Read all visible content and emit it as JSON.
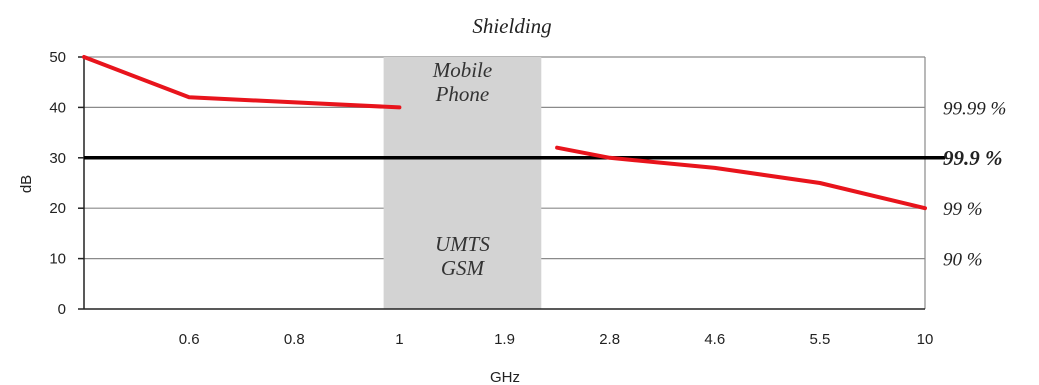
{
  "chart_data": {
    "type": "line",
    "title": "Shielding",
    "xlabel": "GHz",
    "ylabel": "dB",
    "ylim": [
      0,
      50
    ],
    "yticks": [
      "0",
      "10",
      "20",
      "30",
      "40",
      "50"
    ],
    "categories": [
      "",
      "0.6",
      "0.8",
      "1",
      "1.9",
      "2.8",
      "4.6",
      "5.5",
      "10"
    ],
    "series": [
      {
        "color": "#e8141c",
        "segments": [
          [
            {
              "x": 0,
              "y": 50
            },
            {
              "x": 1,
              "y": 42
            },
            {
              "x": 3,
              "y": 40
            }
          ],
          [
            {
              "x": 4.5,
              "y": 32
            },
            {
              "x": 5,
              "y": 30
            },
            {
              "x": 6,
              "y": 28
            },
            {
              "x": 7,
              "y": 25
            },
            {
              "x": 8,
              "y": 20
            }
          ]
        ]
      }
    ],
    "threshold": {
      "y": 30,
      "color": "#000000"
    },
    "band": {
      "x_start": 2.85,
      "x_end": 4.35,
      "color": "#d3d3d3",
      "upper_lines": [
        "Mobile",
        "Phone"
      ],
      "lower_lines": [
        "UMTS",
        "GSM"
      ]
    },
    "right_labels": [
      {
        "y": 40,
        "text": "99.99 %",
        "bold": false
      },
      {
        "y": 30,
        "text": "99.9 %",
        "bold": true
      },
      {
        "y": 20,
        "text": "99 %",
        "bold": false
      },
      {
        "y": 10,
        "text": "90 %",
        "bold": false
      }
    ],
    "grid": true,
    "legend": "none"
  }
}
